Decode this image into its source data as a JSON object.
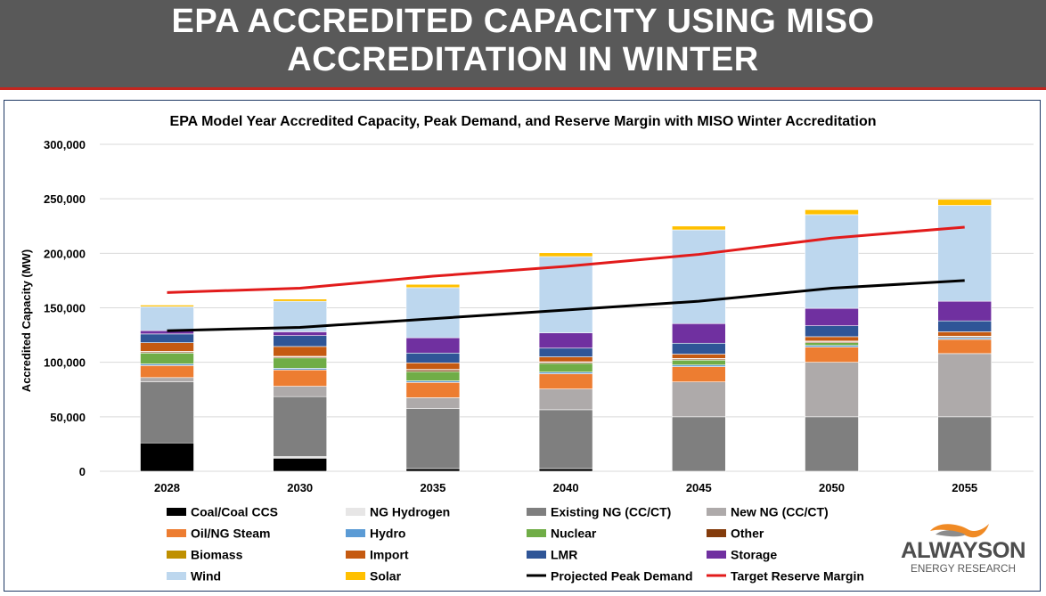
{
  "header": {
    "title_line1": "EPA ACCREDITED CAPACITY USING MISO",
    "title_line2": "ACCREDITATION IN WINTER"
  },
  "logo": {
    "name": "ALWAYSON",
    "sub": "ENERGY RESEARCH"
  },
  "chart_data": {
    "type": "bar",
    "stacked": true,
    "title": "EPA Model Year Accredited Capacity, Peak Demand, and Reserve Margin with MISO Winter Accreditation",
    "xlabel": "",
    "ylabel": "Accredited Capacity (MW)",
    "ylim": [
      0,
      300000
    ],
    "yticks": [
      0,
      50000,
      100000,
      150000,
      200000,
      250000,
      300000
    ],
    "ytick_labels": [
      "0",
      "50,000",
      "100,000",
      "150,000",
      "200,000",
      "250,000",
      "300,000"
    ],
    "categories": [
      "2028",
      "2030",
      "2035",
      "2040",
      "2045",
      "2050",
      "2055"
    ],
    "grid": true,
    "legend_position": "bottom",
    "series": [
      {
        "name": "Coal/Coal CCS",
        "color": "#000000",
        "values": [
          26000,
          12000,
          2500,
          2500,
          0,
          0,
          0
        ]
      },
      {
        "name": "NG Hydrogen",
        "color": "#e7e6e6",
        "values": [
          0,
          1500,
          0,
          0,
          0,
          0,
          0
        ]
      },
      {
        "name": "Existing NG (CC/CT)",
        "color": "#7f7f7f",
        "values": [
          56000,
          55000,
          55000,
          54000,
          50000,
          50000,
          50000
        ]
      },
      {
        "name": "New NG (CC/CT)",
        "color": "#aeaaaa",
        "values": [
          4000,
          9500,
          10000,
          19000,
          32000,
          50000,
          58000
        ]
      },
      {
        "name": "Oil/NG Steam",
        "color": "#ed7d31",
        "values": [
          11000,
          15000,
          14000,
          14000,
          14000,
          14000,
          13000
        ]
      },
      {
        "name": "Hydro",
        "color": "#5b9bd5",
        "values": [
          1500,
          1500,
          1500,
          1500,
          1500,
          1500,
          1500
        ]
      },
      {
        "name": "Nuclear",
        "color": "#70ad47",
        "values": [
          10000,
          9500,
          8500,
          8000,
          4500,
          2500,
          0
        ]
      },
      {
        "name": "Other",
        "color": "#843c0c",
        "values": [
          1000,
          1000,
          1500,
          1000,
          1000,
          1000,
          1000
        ]
      },
      {
        "name": "Biomass",
        "color": "#bf9000",
        "values": [
          500,
          500,
          500,
          500,
          500,
          500,
          500
        ]
      },
      {
        "name": "Import",
        "color": "#c55a11",
        "values": [
          8000,
          9000,
          6000,
          4500,
          4000,
          4000,
          4000
        ]
      },
      {
        "name": "LMR",
        "color": "#2f5597",
        "values": [
          8000,
          10000,
          9000,
          8000,
          10000,
          10000,
          10000
        ]
      },
      {
        "name": "Storage",
        "color": "#7030a0",
        "values": [
          3000,
          3500,
          14000,
          14000,
          18000,
          16000,
          18000
        ]
      },
      {
        "name": "Wind",
        "color": "#bdd7ee",
        "values": [
          22000,
          28000,
          46000,
          70000,
          86000,
          86000,
          88000
        ]
      },
      {
        "name": "Solar",
        "color": "#ffc000",
        "values": [
          1500,
          2000,
          3000,
          3500,
          3500,
          4500,
          5500
        ]
      }
    ],
    "lines": [
      {
        "name": "Projected Peak Demand",
        "color": "#000000",
        "values": [
          129000,
          132000,
          140000,
          148000,
          156000,
          168000,
          175000
        ]
      },
      {
        "name": "Target Reserve Margin",
        "color": "#e21b1b",
        "values": [
          164000,
          168000,
          179000,
          188000,
          199000,
          214000,
          224000
        ]
      }
    ]
  }
}
